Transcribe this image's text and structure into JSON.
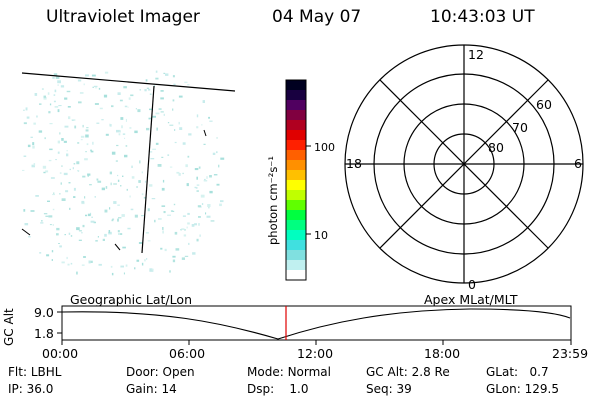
{
  "header": {
    "instrument": "Ultraviolet Imager",
    "date": "04 May 07",
    "time": "10:43:03 UT"
  },
  "colorbar": {
    "unit_label": "photon cm⁻²s⁻¹",
    "ticks": [
      "100",
      "10"
    ],
    "colors": [
      "#000020",
      "#180040",
      "#500060",
      "#800040",
      "#b00020",
      "#e00000",
      "#ff2000",
      "#ff6000",
      "#ff9000",
      "#ffc000",
      "#ffff00",
      "#c0ff00",
      "#60ff00",
      "#00ff40",
      "#00ff80",
      "#00ffc0",
      "#40e0e0",
      "#80e0e0",
      "#c0f0f0",
      "#ffffff"
    ]
  },
  "polar_plot": {
    "mlt_labels": {
      "top": "12",
      "left": "18",
      "right": "6",
      "bottom": "0"
    },
    "lat_labels": [
      "60",
      "70",
      "80"
    ]
  },
  "timeline": {
    "y_axis_label": "GC Alt",
    "y_ticks": [
      "9.0",
      "1.8"
    ],
    "left_caption": "Geographic Lat/Lon",
    "right_caption": "Apex MLat/MLT",
    "x_ticks": [
      "00:00",
      "06:00",
      "12:00",
      "18:00",
      "23:59"
    ],
    "current_time_marker": "10:43",
    "marker_color": "#e00000"
  },
  "status": {
    "row1": [
      {
        "key": "Flt:",
        "value": "LBHL"
      },
      {
        "key": "Door:",
        "value": "Open"
      },
      {
        "key": "Mode:",
        "value": "Normal"
      },
      {
        "key": "GC Alt:",
        "value": "2.8 Re"
      },
      {
        "key": "GLat:",
        "value": "0.7"
      }
    ],
    "row2": [
      {
        "key": "IP:",
        "value": "36.0"
      },
      {
        "key": "Gain:",
        "value": "14"
      },
      {
        "key": "Dsp:",
        "value": "1.0"
      },
      {
        "key": "Seq:",
        "value": "39"
      },
      {
        "key": "GLon:",
        "value": "129.5"
      }
    ]
  }
}
